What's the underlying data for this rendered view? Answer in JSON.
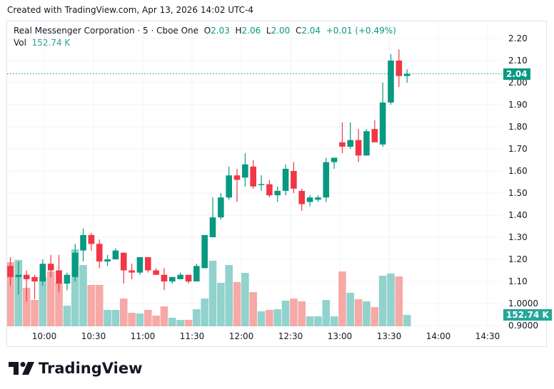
{
  "created_text": "Created with TradingView.com, Apr 13, 2026 14:02 UTC-4",
  "legend": {
    "symbol": "Real Messenger Corporation · 5 · Cboe One",
    "o_label": "O",
    "o": "2.03",
    "h_label": "H",
    "h": "2.06",
    "l_label": "L",
    "l": "2.00",
    "c_label": "C",
    "c": "2.04",
    "change": "+0.01 (+0.49%)",
    "vol_label": "Vol",
    "vol": "152.74 K"
  },
  "last_price_badge": "2.04",
  "last_volume_badge": "152.74 K",
  "brand": "TradingView",
  "colors": {
    "up": "#089981",
    "down": "#f23645",
    "vol_up": "#92d2cc",
    "vol_down": "#f7a9a7",
    "badge_price": "#089981",
    "badge_vol": "#26a69a"
  },
  "chart_data": {
    "type": "candlestick",
    "title": "Real Messenger Corporation · 5 · Cboe One",
    "interval_minutes": 5,
    "price_ticks": [
      "2.20",
      "2.10",
      "2.00",
      "1.90",
      "1.80",
      "1.70",
      "1.60",
      "1.50",
      "1.40",
      "1.30",
      "1.20",
      "1.10",
      "1.0000",
      "0.9000"
    ],
    "time_ticks": [
      "10:00",
      "10:30",
      "11:00",
      "11:30",
      "12:00",
      "12:30",
      "13:00",
      "13:30",
      "14:00",
      "14:30"
    ],
    "ylim": [
      0.88,
      2.24
    ],
    "volume_unit": "K",
    "ohlcv": [
      [
        1.17,
        1.21,
        1.08,
        1.12,
        860
      ],
      [
        1.12,
        1.19,
        1.04,
        1.13,
        888
      ],
      [
        1.13,
        1.15,
        1.01,
        1.11,
        516
      ],
      [
        1.12,
        1.13,
        1.02,
        1.1,
        353
      ],
      [
        1.1,
        1.2,
        1.08,
        1.18,
        659
      ],
      [
        1.18,
        1.22,
        1.12,
        1.15,
        735
      ],
      [
        1.15,
        1.22,
        1.05,
        1.09,
        583
      ],
      [
        1.09,
        1.14,
        1.06,
        1.13,
        277
      ],
      [
        1.12,
        1.27,
        1.1,
        1.23,
        1031
      ],
      [
        1.24,
        1.34,
        1.19,
        1.31,
        821
      ],
      [
        1.31,
        1.32,
        1.24,
        1.27,
        554
      ],
      [
        1.27,
        1.29,
        1.16,
        1.19,
        554
      ],
      [
        1.19,
        1.22,
        1.17,
        1.2,
        220
      ],
      [
        1.2,
        1.25,
        1.2,
        1.24,
        220
      ],
      [
        1.23,
        1.23,
        1.09,
        1.15,
        372
      ],
      [
        1.15,
        1.18,
        1.11,
        1.14,
        181
      ],
      [
        1.14,
        1.21,
        1.13,
        1.21,
        172
      ],
      [
        1.21,
        1.21,
        1.14,
        1.15,
        220
      ],
      [
        1.15,
        1.16,
        1.13,
        1.13,
        143
      ],
      [
        1.13,
        1.16,
        1.06,
        1.1,
        267
      ],
      [
        1.1,
        1.12,
        1.09,
        1.12,
        115
      ],
      [
        1.11,
        1.14,
        1.11,
        1.13,
        86
      ],
      [
        1.13,
        1.13,
        1.09,
        1.1,
        86
      ],
      [
        1.1,
        1.18,
        1.1,
        1.17,
        229
      ],
      [
        1.16,
        1.31,
        1.16,
        1.31,
        372
      ],
      [
        1.3,
        1.48,
        1.3,
        1.39,
        879
      ],
      [
        1.39,
        1.5,
        1.38,
        1.48,
        583
      ],
      [
        1.48,
        1.62,
        1.47,
        1.58,
        821
      ],
      [
        1.58,
        1.61,
        1.46,
        1.56,
        592
      ],
      [
        1.57,
        1.68,
        1.53,
        1.63,
        716
      ],
      [
        1.62,
        1.65,
        1.52,
        1.53,
        458
      ],
      [
        1.54,
        1.58,
        1.51,
        1.541,
        201
      ],
      [
        1.54,
        1.56,
        1.48,
        1.49,
        220
      ],
      [
        1.49,
        1.53,
        1.46,
        1.51,
        229
      ],
      [
        1.51,
        1.63,
        1.49,
        1.61,
        344
      ],
      [
        1.6,
        1.64,
        1.5,
        1.52,
        372
      ],
      [
        1.51,
        1.52,
        1.42,
        1.45,
        334
      ],
      [
        1.46,
        1.49,
        1.44,
        1.48,
        134
      ],
      [
        1.47,
        1.49,
        1.46,
        1.48,
        134
      ],
      [
        1.48,
        1.66,
        1.46,
        1.64,
        353
      ],
      [
        1.64,
        1.66,
        1.61,
        1.66,
        134
      ],
      [
        1.73,
        1.82,
        1.68,
        1.71,
        735
      ],
      [
        1.71,
        1.82,
        1.7,
        1.74,
        449
      ],
      [
        1.74,
        1.79,
        1.64,
        1.67,
        363
      ],
      [
        1.67,
        1.79,
        1.67,
        1.78,
        334
      ],
      [
        1.79,
        1.83,
        1.73,
        1.73,
        258
      ],
      [
        1.72,
        2.0,
        1.71,
        1.91,
        678
      ],
      [
        1.91,
        2.13,
        1.9,
        2.1,
        707
      ],
      [
        2.1,
        2.15,
        1.98,
        2.03,
        669
      ],
      [
        2.03,
        2.06,
        2.0,
        2.04,
        153
      ]
    ]
  }
}
